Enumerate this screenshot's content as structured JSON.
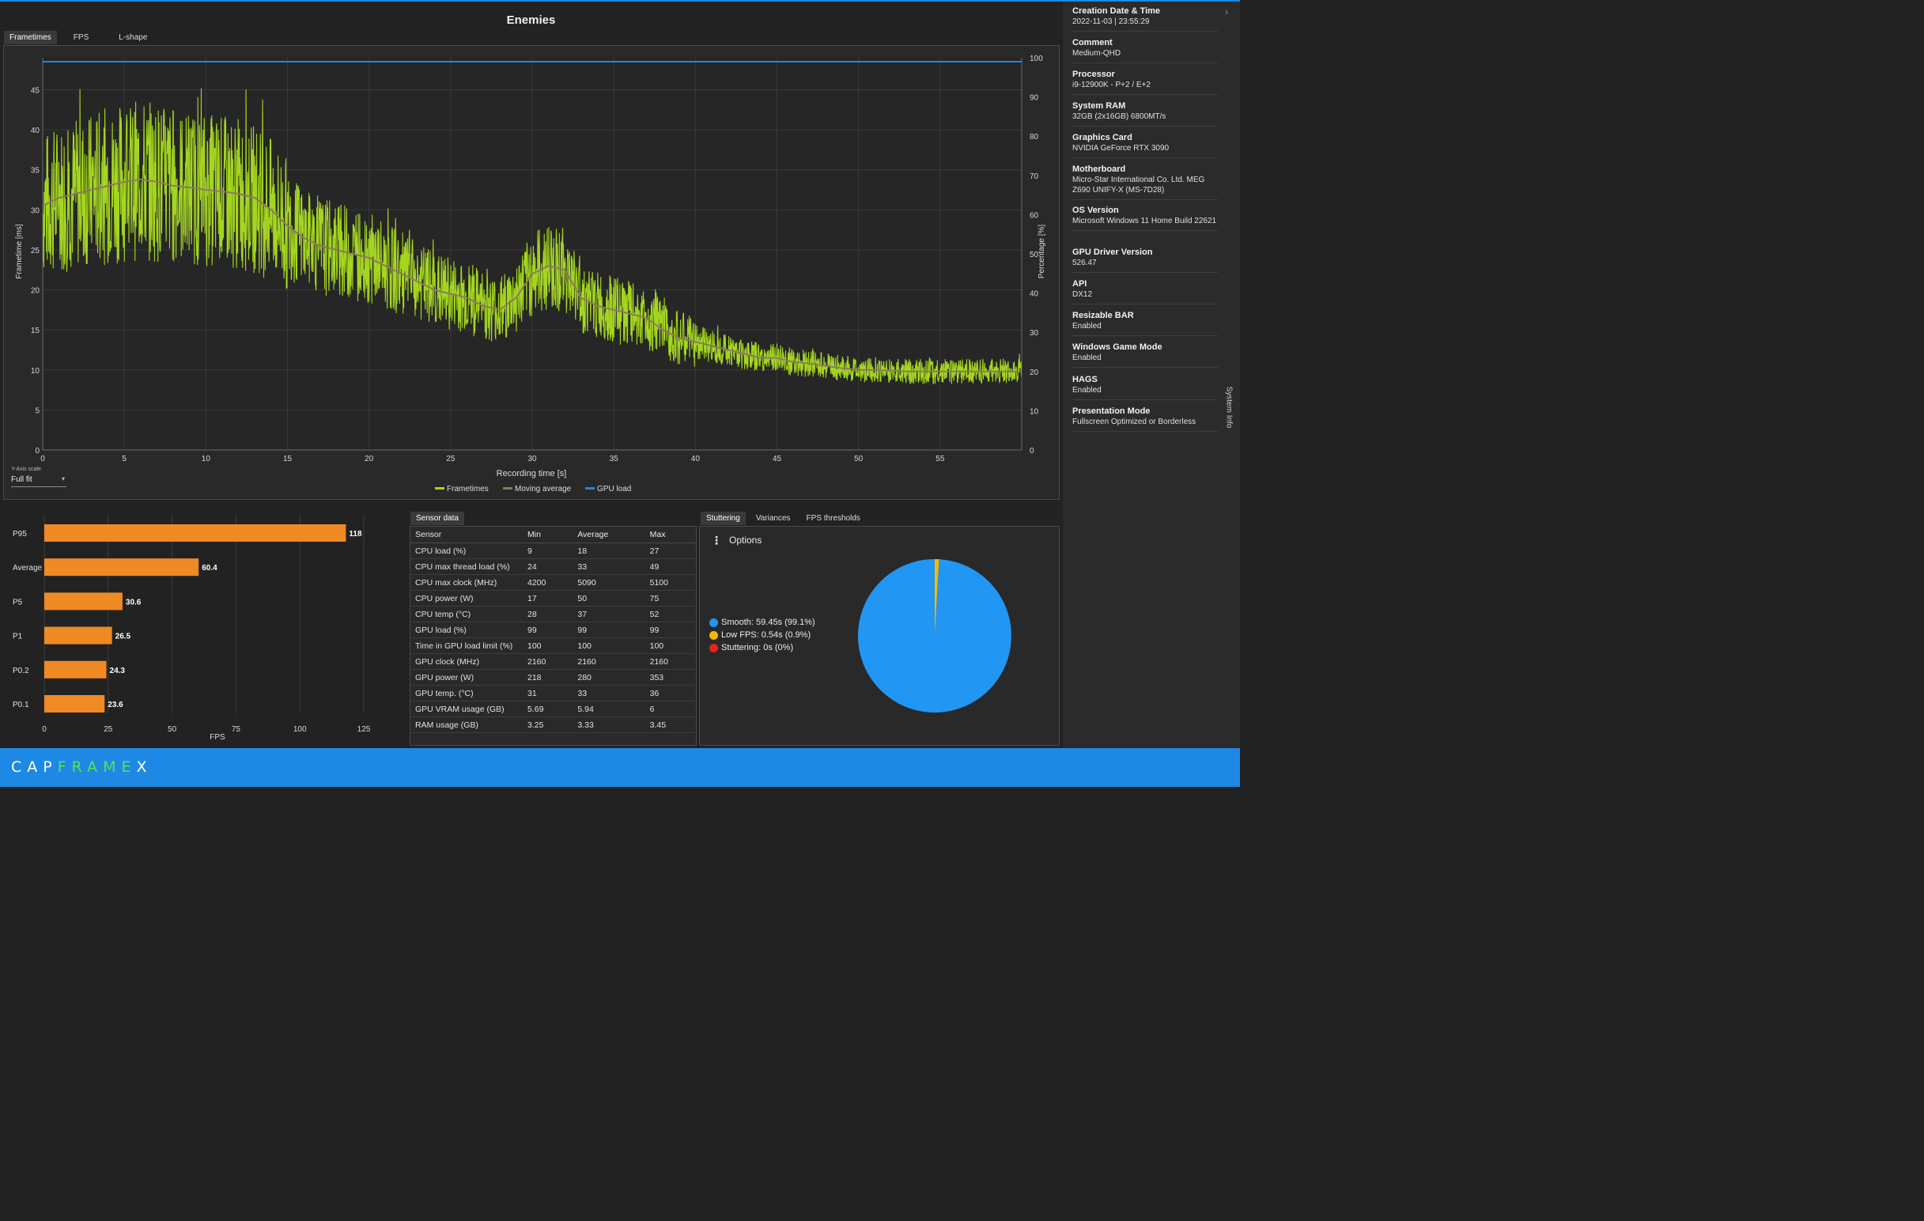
{
  "app": {
    "logo_a": "CAP",
    "logo_b": "FRAME",
    "logo_c": "X"
  },
  "chart_title": "Enemies",
  "tabs_top": [
    "Frametimes",
    "FPS",
    "L-shape"
  ],
  "tabs_top_active": 0,
  "frametime_chart": {
    "x_label": "Recording time [s]",
    "y_label": "Frametime [ms]",
    "y2_label": "Percentage [%]",
    "x_ticks": [
      "0",
      "5",
      "10",
      "15",
      "20",
      "25",
      "30",
      "35",
      "40",
      "45",
      "50",
      "55"
    ],
    "y_ticks": [
      "0",
      "5",
      "10",
      "15",
      "20",
      "25",
      "30",
      "35",
      "40",
      "45"
    ],
    "y2_ticks": [
      "0",
      "10",
      "20",
      "30",
      "40",
      "50",
      "60",
      "70",
      "80",
      "90",
      "100"
    ],
    "legend": [
      "Frametimes",
      "Moving average",
      "GPU load"
    ]
  },
  "yaxis_scale": {
    "caption": "Y-Axis scale",
    "value": "Full fit"
  },
  "colors": {
    "frametimes": "#a4d61f",
    "moving_average": "#8c7a5e",
    "gpu_load": "#1e88e5",
    "bars": "#f08a24",
    "smooth": "#2196f3",
    "low_fps": "#f5b800",
    "stuttering": "#e82020",
    "footer": "#1e88e5",
    "logo_green": "#58e44b"
  },
  "chart_data": [
    {
      "type": "line",
      "title": "Enemies",
      "xlabel": "Recording time [s]",
      "ylabel": "Frametime [ms]",
      "y2label": "Percentage [%]",
      "xlim": [
        0,
        60
      ],
      "ylim": [
        0,
        49
      ],
      "y2lim": [
        0,
        100
      ],
      "grid": true,
      "legend": "bottom-center",
      "series": [
        {
          "name": "Moving average",
          "x": [
            0,
            1,
            2,
            3,
            4,
            5,
            6,
            7,
            8,
            9,
            10,
            11,
            12,
            13,
            14,
            15,
            16,
            17,
            18,
            19,
            20,
            21,
            22,
            23,
            24,
            25,
            26,
            27,
            28,
            29,
            30,
            31,
            32,
            33,
            34,
            35,
            36,
            37,
            38,
            39,
            40,
            41,
            42,
            43,
            44,
            45,
            46,
            47,
            48,
            49,
            50,
            51,
            52,
            53,
            54,
            55,
            56,
            57,
            58,
            59,
            60
          ],
          "values": [
            30.5,
            31.5,
            32,
            32.5,
            33,
            33.5,
            33.8,
            33.5,
            33,
            32.8,
            32.5,
            32.3,
            32,
            31.5,
            30,
            28,
            26.5,
            25.5,
            25,
            24.5,
            24,
            23,
            22,
            21,
            20,
            19.5,
            19,
            18,
            17.5,
            19,
            22,
            23,
            22.5,
            19,
            18,
            17.5,
            17,
            16.5,
            15,
            14,
            13.5,
            13,
            12.5,
            12,
            11.5,
            11.5,
            11,
            10.8,
            10.5,
            10.2,
            10,
            10,
            9.9,
            9.8,
            9.8,
            9.8,
            9.8,
            9.8,
            9.8,
            9.8,
            9.8
          ]
        },
        {
          "name": "Frametimes",
          "x": [
            0,
            1,
            2,
            3,
            4,
            5,
            6,
            7,
            8,
            9,
            10,
            11,
            12,
            13,
            14,
            15,
            16,
            17,
            18,
            19,
            20,
            21,
            22,
            23,
            24,
            25,
            26,
            27,
            28,
            29,
            30,
            31,
            32,
            33,
            34,
            35,
            36,
            37,
            38,
            39,
            40,
            41,
            42,
            43,
            44,
            45,
            46,
            47,
            48,
            49,
            50,
            51,
            52,
            53,
            54,
            55,
            56,
            57,
            58,
            59,
            60
          ],
          "values": [
            30.5,
            31.5,
            32,
            32.5,
            33,
            33.5,
            33.8,
            33.5,
            33,
            32.8,
            32.5,
            32.3,
            32,
            31.5,
            30,
            28,
            26.5,
            25.5,
            25,
            24.5,
            24,
            23,
            22,
            21,
            20,
            19.5,
            19,
            18,
            17.5,
            19,
            22,
            23,
            22.5,
            19,
            18,
            17.5,
            17,
            16.5,
            15,
            14,
            13.5,
            13,
            12.5,
            12,
            11.5,
            11.5,
            11,
            10.8,
            10.5,
            10.2,
            10,
            10,
            9.9,
            9.8,
            9.8,
            9.8,
            9.8,
            9.8,
            9.8,
            9.8,
            9.8
          ]
        },
        {
          "name": "GPU load",
          "axis": "right",
          "x": [
            0,
            60
          ],
          "values": [
            99,
            99
          ]
        }
      ]
    },
    {
      "type": "bar",
      "orientation": "horizontal",
      "xlabel": "FPS",
      "categories": [
        "P95",
        "Average",
        "P5",
        "P1",
        "P0.2",
        "P0.1"
      ],
      "values": [
        118,
        60.4,
        30.6,
        26.5,
        24.3,
        23.6
      ],
      "labels": [
        "118",
        "60.4",
        "30.6",
        "26.5",
        "24.3",
        "23.6"
      ],
      "xlim": [
        0,
        125
      ],
      "x_ticks": [
        "0",
        "25",
        "50",
        "75",
        "100",
        "125"
      ]
    },
    {
      "type": "pie",
      "categories": [
        "Smooth",
        "Low FPS",
        "Stuttering"
      ],
      "values": [
        99.1,
        0.9,
        0
      ]
    }
  ],
  "sensor_panel": {
    "tab": "Sensor data",
    "headers": [
      "Sensor",
      "Min",
      "Average",
      "Max"
    ],
    "rows": [
      [
        "CPU load (%)",
        "9",
        "18",
        "27"
      ],
      [
        "CPU max thread load (%)",
        "24",
        "33",
        "49"
      ],
      [
        "CPU max clock (MHz)",
        "4200",
        "5090",
        "5100"
      ],
      [
        "CPU power (W)",
        "17",
        "50",
        "75"
      ],
      [
        "CPU temp (°C)",
        "28",
        "37",
        "52"
      ],
      [
        "GPU load (%)",
        "99",
        "99",
        "99"
      ],
      [
        "Time in GPU load limit (%)",
        "100",
        "100",
        "100"
      ],
      [
        "GPU clock (MHz)",
        "2160",
        "2160",
        "2160"
      ],
      [
        "GPU power (W)",
        "218",
        "280",
        "353"
      ],
      [
        "GPU temp. (°C)",
        "31",
        "33",
        "36"
      ],
      [
        "GPU VRAM usage (GB)",
        "5.69",
        "5.94",
        "6"
      ],
      [
        "RAM usage (GB)",
        "3.25",
        "3.33",
        "3.45"
      ]
    ]
  },
  "stutter_panel": {
    "tabs": [
      "Stuttering",
      "Variances",
      "FPS thresholds"
    ],
    "active": 0,
    "options_label": "Options",
    "legend": [
      {
        "label": "Smooth:",
        "value": "59.45s (99.1%)"
      },
      {
        "label": "Low FPS:",
        "value": "0.54s (0.9%)"
      },
      {
        "label": "Stuttering:",
        "value": "0s (0%)"
      }
    ]
  },
  "system_info": {
    "tab_label": "System Info",
    "items": [
      {
        "title": "Creation Date & Time",
        "value": "2022-11-03  |  23:55:29"
      },
      {
        "title": "Comment",
        "value": "Medium-QHD"
      },
      {
        "title": "Processor",
        "value": "i9-12900K - P+2 / E+2"
      },
      {
        "title": "System RAM",
        "value": "32GB (2x16GB) 6800MT/s"
      },
      {
        "title": "Graphics Card",
        "value": "NVIDIA GeForce RTX 3090"
      },
      {
        "title": "Motherboard",
        "value": "Micro-Star International Co. Ltd. MEG Z690 UNIFY-X (MS-7D28)"
      },
      {
        "title": "OS Version",
        "value": "Microsoft Windows 11 Home Build 22621"
      },
      {
        "title": "GPU Driver Version",
        "value": "526.47"
      },
      {
        "title": "API",
        "value": "DX12"
      },
      {
        "title": "Resizable BAR",
        "value": "Enabled"
      },
      {
        "title": "Windows Game Mode",
        "value": "Enabled"
      },
      {
        "title": "HAGS",
        "value": "Enabled"
      },
      {
        "title": "Presentation Mode",
        "value": "Fullscreen Optimized or Borderless"
      }
    ]
  }
}
